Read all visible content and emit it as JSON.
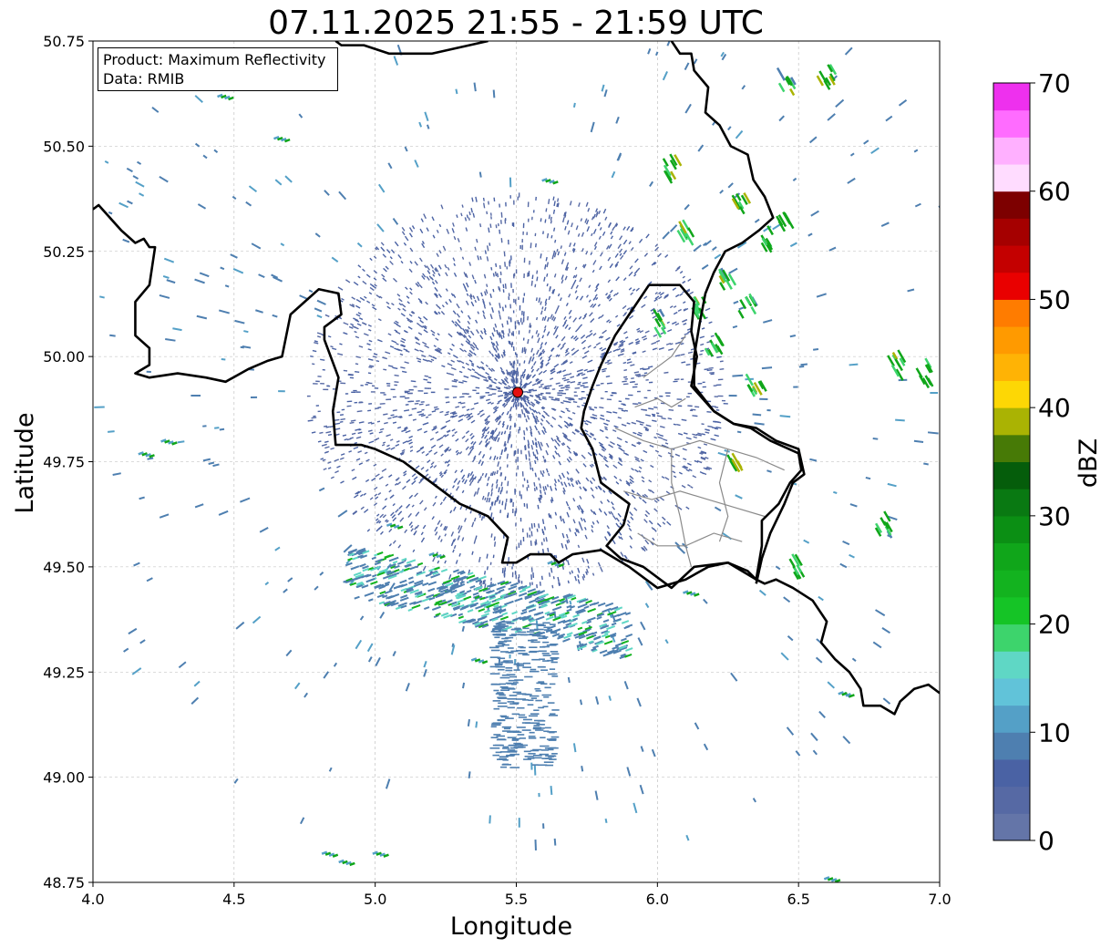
{
  "title": "07.11.2025 21:55 - 21:59 UTC",
  "xlabel": "Longitude",
  "ylabel": "Latitude",
  "info": {
    "product": "Product: Maximum Reflectivity",
    "data": "Data: RMIB"
  },
  "x_ticks": [
    "4.0",
    "4.5",
    "5.0",
    "5.5",
    "6.0",
    "6.5",
    "7.0"
  ],
  "y_ticks": [
    "50.75",
    "50.50",
    "50.25",
    "50.00",
    "49.75",
    "49.50",
    "49.25",
    "49.00",
    "48.75"
  ],
  "colorbar": {
    "label": "dBZ",
    "ticks": [
      "0",
      "10",
      "20",
      "30",
      "40",
      "50",
      "60",
      "70"
    ],
    "min": 0,
    "max": 70,
    "step": 2.5,
    "colors": [
      "#6475a8",
      "#5669a4",
      "#4a62a4",
      "#4e7fb0",
      "#54a0c7",
      "#61c3d9",
      "#5fd7c5",
      "#3dd46c",
      "#15c426",
      "#13b31f",
      "#10a61a",
      "#0b8f14",
      "#097912",
      "#055d0b",
      "#477a06",
      "#aab303",
      "#fdd705",
      "#ffb305",
      "#ff9a00",
      "#ff7c00",
      "#e90000",
      "#c40000",
      "#a50000",
      "#7d0000",
      "#ffdcff",
      "#ffb0ff",
      "#ff6cff",
      "#ee30ee"
    ]
  },
  "chart_data": {
    "type": "map",
    "xlim": [
      4.0,
      7.0
    ],
    "ylim": [
      48.75,
      50.75
    ],
    "grid": true,
    "radar_site": {
      "lon": 5.505,
      "lat": 49.915
    },
    "borders": [
      [
        [
          4.0,
          50.35
        ],
        [
          4.02,
          50.36
        ],
        [
          4.1,
          50.3
        ],
        [
          4.15,
          50.27
        ],
        [
          4.18,
          50.28
        ],
        [
          4.2,
          50.26
        ],
        [
          4.22,
          50.26
        ],
        [
          4.2,
          50.17
        ],
        [
          4.15,
          50.13
        ],
        [
          4.15,
          50.05
        ],
        [
          4.2,
          50.02
        ],
        [
          4.2,
          49.98
        ],
        [
          4.15,
          49.96
        ],
        [
          4.2,
          49.95
        ],
        [
          4.3,
          49.96
        ],
        [
          4.4,
          49.95
        ],
        [
          4.47,
          49.94
        ],
        [
          4.55,
          49.97
        ],
        [
          4.62,
          49.99
        ],
        [
          4.67,
          50.0
        ],
        [
          4.7,
          50.1
        ],
        [
          4.75,
          50.13
        ],
        [
          4.8,
          50.16
        ],
        [
          4.87,
          50.15
        ],
        [
          4.88,
          50.1
        ],
        [
          4.82,
          50.07
        ],
        [
          4.82,
          50.04
        ],
        [
          4.87,
          49.95
        ],
        [
          4.85,
          49.87
        ],
        [
          4.86,
          49.79
        ],
        [
          4.95,
          49.79
        ],
        [
          5.0,
          49.78
        ],
        [
          5.1,
          49.75
        ],
        [
          5.2,
          49.7
        ],
        [
          5.3,
          49.65
        ],
        [
          5.4,
          49.62
        ],
        [
          5.47,
          49.57
        ],
        [
          5.45,
          49.51
        ],
        [
          5.5,
          49.51
        ],
        [
          5.55,
          49.53
        ],
        [
          5.62,
          49.53
        ],
        [
          5.65,
          49.51
        ],
        [
          5.7,
          49.53
        ],
        [
          5.8,
          49.54
        ],
        [
          5.9,
          49.5
        ],
        [
          6.0,
          49.45
        ],
        [
          6.1,
          49.47
        ],
        [
          6.18,
          49.5
        ],
        [
          6.25,
          49.51
        ],
        [
          6.32,
          49.49
        ],
        [
          6.35,
          49.47
        ],
        [
          6.38,
          49.46
        ],
        [
          6.42,
          49.47
        ],
        [
          6.48,
          49.45
        ],
        [
          6.55,
          49.42
        ],
        [
          6.6,
          49.37
        ],
        [
          6.58,
          49.32
        ],
        [
          6.63,
          49.28
        ],
        [
          6.68,
          49.25
        ],
        [
          6.72,
          49.21
        ],
        [
          6.73,
          49.17
        ],
        [
          6.79,
          49.17
        ],
        [
          6.84,
          49.15
        ],
        [
          6.86,
          49.18
        ],
        [
          6.91,
          49.21
        ],
        [
          6.96,
          49.22
        ],
        [
          7.0,
          49.2
        ]
      ],
      [
        [
          4.86,
          50.75
        ],
        [
          4.88,
          50.74
        ],
        [
          4.96,
          50.74
        ],
        [
          5.05,
          50.72
        ],
        [
          5.2,
          50.72
        ],
        [
          5.4,
          50.75
        ]
      ],
      [
        [
          6.05,
          50.75
        ],
        [
          6.08,
          50.72
        ],
        [
          6.12,
          50.72
        ],
        [
          6.13,
          50.68
        ],
        [
          6.18,
          50.64
        ],
        [
          6.17,
          50.58
        ],
        [
          6.22,
          50.55
        ],
        [
          6.26,
          50.5
        ],
        [
          6.32,
          50.48
        ],
        [
          6.34,
          50.42
        ],
        [
          6.38,
          50.38
        ],
        [
          6.41,
          50.33
        ],
        [
          6.36,
          50.3
        ],
        [
          6.3,
          50.27
        ],
        [
          6.24,
          50.25
        ],
        [
          6.2,
          50.2
        ],
        [
          6.17,
          50.15
        ],
        [
          6.15,
          50.08
        ],
        [
          6.13,
          50.0
        ],
        [
          6.13,
          49.93
        ],
        [
          6.2,
          49.87
        ],
        [
          6.27,
          49.84
        ],
        [
          6.35,
          49.83
        ],
        [
          6.42,
          49.8
        ],
        [
          6.5,
          49.78
        ],
        [
          6.52,
          49.72
        ],
        [
          6.48,
          49.7
        ],
        [
          6.45,
          49.65
        ],
        [
          6.4,
          49.58
        ],
        [
          6.37,
          49.52
        ],
        [
          6.35,
          49.46
        ]
      ],
      [
        [
          5.97,
          50.17
        ],
        [
          6.02,
          50.17
        ],
        [
          6.08,
          50.17
        ],
        [
          6.13,
          50.13
        ],
        [
          6.12,
          50.06
        ],
        [
          6.14,
          50.0
        ],
        [
          6.12,
          49.93
        ],
        [
          6.2,
          49.87
        ],
        [
          6.27,
          49.84
        ],
        [
          6.33,
          49.83
        ],
        [
          6.4,
          49.8
        ],
        [
          6.5,
          49.77
        ],
        [
          6.51,
          49.73
        ],
        [
          6.47,
          49.7
        ],
        [
          6.43,
          49.65
        ],
        [
          6.37,
          49.61
        ],
        [
          6.37,
          49.55
        ],
        [
          6.35,
          49.47
        ],
        [
          6.25,
          49.51
        ],
        [
          6.13,
          49.5
        ],
        [
          6.05,
          49.45
        ],
        [
          5.95,
          49.5
        ],
        [
          5.87,
          49.52
        ],
        [
          5.82,
          49.55
        ],
        [
          5.88,
          49.6
        ],
        [
          5.9,
          49.65
        ],
        [
          5.8,
          49.7
        ],
        [
          5.77,
          49.78
        ],
        [
          5.73,
          49.83
        ],
        [
          5.74,
          49.87
        ],
        [
          5.77,
          49.93
        ],
        [
          5.8,
          49.98
        ],
        [
          5.85,
          50.05
        ],
        [
          5.92,
          50.12
        ],
        [
          5.97,
          50.17
        ]
      ]
    ],
    "internal_lines": [
      [
        [
          5.92,
          49.88
        ],
        [
          6.0,
          49.9
        ],
        [
          6.05,
          49.88
        ],
        [
          6.1,
          49.9
        ]
      ],
      [
        [
          5.85,
          49.83
        ],
        [
          5.95,
          49.8
        ],
        [
          6.05,
          49.78
        ],
        [
          6.15,
          49.8
        ],
        [
          6.25,
          49.78
        ],
        [
          6.35,
          49.76
        ],
        [
          6.45,
          49.73
        ]
      ],
      [
        [
          5.88,
          49.68
        ],
        [
          5.98,
          49.66
        ],
        [
          6.08,
          49.68
        ],
        [
          6.18,
          49.66
        ],
        [
          6.28,
          49.64
        ],
        [
          6.38,
          49.62
        ]
      ],
      [
        [
          6.05,
          49.78
        ],
        [
          6.05,
          49.7
        ],
        [
          6.08,
          49.62
        ],
        [
          6.1,
          49.55
        ],
        [
          6.12,
          49.5
        ]
      ],
      [
        [
          6.25,
          49.78
        ],
        [
          6.22,
          49.7
        ],
        [
          6.25,
          49.62
        ],
        [
          6.22,
          49.56
        ]
      ],
      [
        [
          5.93,
          49.58
        ],
        [
          6.0,
          49.55
        ],
        [
          6.1,
          49.55
        ],
        [
          6.2,
          49.58
        ],
        [
          6.3,
          49.56
        ]
      ],
      [
        [
          5.95,
          49.95
        ],
        [
          6.05,
          50.0
        ],
        [
          6.1,
          50.05
        ]
      ]
    ]
  }
}
